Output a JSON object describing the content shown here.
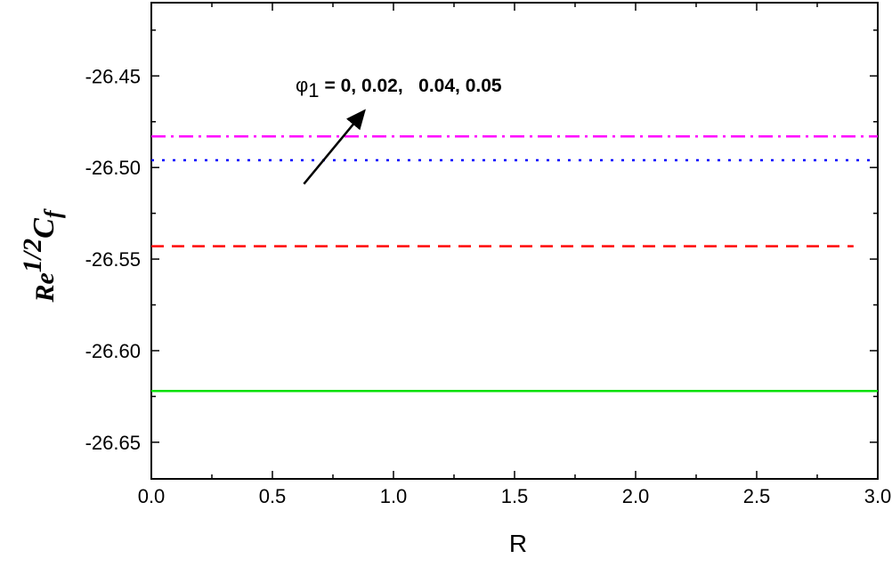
{
  "chart_data": {
    "type": "line",
    "xlabel": "R",
    "ylabel": {
      "main": "Re",
      "sup": "1/2",
      "sub_main": "C",
      "sub": "f"
    },
    "xlim": [
      0.0,
      3.0
    ],
    "ylim": [
      -26.67,
      -26.41
    ],
    "x_ticks": [
      0.0,
      0.5,
      1.0,
      1.5,
      2.0,
      2.5,
      3.0
    ],
    "x_tick_labels": [
      "0.0",
      "0.5",
      "1.0",
      "1.5",
      "2.0",
      "2.5",
      "3.0"
    ],
    "y_ticks": [
      -26.45,
      -26.5,
      -26.55,
      -26.6,
      -26.65
    ],
    "y_tick_labels": [
      "-26.45",
      "-26.50",
      "-26.55",
      "-26.60",
      "-26.65"
    ],
    "grid": false,
    "series": [
      {
        "phi1": 0,
        "x": [
          0.0,
          3.0
        ],
        "y": [
          -26.622,
          -26.622
        ],
        "color": "#00e000",
        "style": "solid"
      },
      {
        "phi1": 0.02,
        "x": [
          0.0,
          2.9
        ],
        "y": [
          -26.543,
          -26.543
        ],
        "color": "#ff0000",
        "style": "dash"
      },
      {
        "phi1": 0.04,
        "x": [
          0.0,
          3.0
        ],
        "y": [
          -26.496,
          -26.496
        ],
        "color": "#0000ff",
        "style": "dot"
      },
      {
        "phi1": 0.05,
        "x": [
          0.0,
          3.0
        ],
        "y": [
          -26.483,
          -26.483
        ],
        "color": "#ff00ff",
        "style": "dashdot"
      }
    ],
    "annotation": {
      "symbol": "φ",
      "subscript": "1",
      "text": "= 0, 0.02,   0.04, 0.05",
      "arrow_from": [
        0.63,
        -26.509
      ],
      "arrow_to": [
        0.88,
        -26.469
      ]
    }
  }
}
